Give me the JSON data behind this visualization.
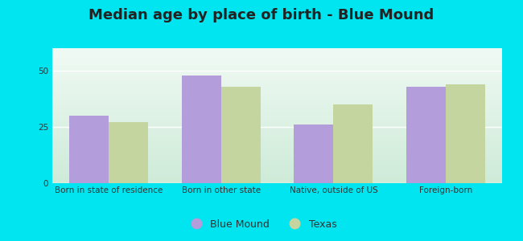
{
  "title": "Median age by place of birth - Blue Mound",
  "categories": [
    "Born in state of residence",
    "Born in other state",
    "Native, outside of US",
    "Foreign-born"
  ],
  "blue_mound_values": [
    30,
    48,
    26,
    43
  ],
  "texas_values": [
    27,
    43,
    35,
    44
  ],
  "blue_mound_color": "#b39ddb",
  "texas_color": "#c5d5a0",
  "ylim": [
    0,
    60
  ],
  "yticks": [
    0,
    25,
    50
  ],
  "background_outer": "#00e5f0",
  "background_plot_top": "#f0faf4",
  "background_plot_bottom": "#ceebd8",
  "grid_color": "#e8f8ee",
  "title_fontsize": 13,
  "tick_fontsize": 7.5,
  "legend_blue_mound": "Blue Mound",
  "legend_texas": "Texas",
  "bar_width": 0.35
}
